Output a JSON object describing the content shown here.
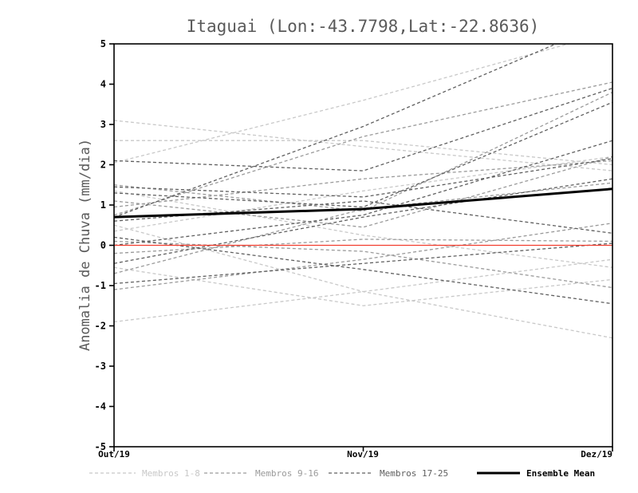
{
  "chart_data": {
    "type": "line",
    "title": "Itaguai (Lon:-43.7798,Lat:-22.8636)",
    "ylabel": "Anomalia de Chuva (mm/dia)",
    "xlabel": "",
    "x_tick_labels": [
      "Out/19",
      "Nov/19",
      "Dez/19"
    ],
    "y_ticks": [
      -5,
      -4,
      -3,
      -2,
      -1,
      0,
      1,
      2,
      3,
      4,
      5
    ],
    "ylim": [
      -5,
      5
    ],
    "grid": false,
    "legend_position": "bottom",
    "zero_line": {
      "value": 0,
      "color": "#f23d2e"
    },
    "groups": [
      {
        "name": "Membros 1-8",
        "color": "#c8c8c8",
        "dash": "4 3",
        "width": 1.3
      },
      {
        "name": "Membros 9-16",
        "color": "#9a9a9a",
        "dash": "4 3",
        "width": 1.3
      },
      {
        "name": "Membros 17-25",
        "color": "#5f5f5f",
        "dash": "4 3",
        "width": 1.3
      },
      {
        "name": "Ensemble Mean",
        "color": "#000000",
        "dash": "",
        "width": 3
      }
    ],
    "series": [
      {
        "name": "Membro 1",
        "group": 0,
        "values": [
          3.1,
          2.45,
          1.85
        ]
      },
      {
        "name": "Membro 2",
        "group": 0,
        "values": [
          2.6,
          2.6,
          2.0
        ]
      },
      {
        "name": "Membro 3",
        "group": 0,
        "values": [
          2.05,
          3.6,
          5.3
        ]
      },
      {
        "name": "Membro 4",
        "group": 0,
        "values": [
          1.35,
          0.25,
          -0.55
        ]
      },
      {
        "name": "Membro 5",
        "group": 0,
        "values": [
          0.5,
          -1.15,
          -2.3
        ]
      },
      {
        "name": "Membro 6",
        "group": 0,
        "values": [
          -1.9,
          -1.15,
          -0.35
        ]
      },
      {
        "name": "Membro 7",
        "group": 0,
        "values": [
          0.35,
          1.35,
          2.2
        ]
      },
      {
        "name": "Membro 8",
        "group": 0,
        "values": [
          -0.55,
          -1.5,
          -0.85
        ]
      },
      {
        "name": "Membro 9",
        "group": 1,
        "values": [
          0.75,
          2.7,
          4.05
        ]
      },
      {
        "name": "Membro 10",
        "group": 1,
        "values": [
          1.5,
          0.85,
          3.8
        ]
      },
      {
        "name": "Membro 11",
        "group": 1,
        "values": [
          -0.2,
          0.15,
          0.1
        ]
      },
      {
        "name": "Membro 12",
        "group": 1,
        "values": [
          0.1,
          -0.15,
          -1.05
        ]
      },
      {
        "name": "Membro 13",
        "group": 1,
        "values": [
          -0.7,
          0.9,
          1.55
        ]
      },
      {
        "name": "Membro 14",
        "group": 1,
        "values": [
          1.1,
          0.45,
          2.2
        ]
      },
      {
        "name": "Membro 15",
        "group": 1,
        "values": [
          -1.1,
          -0.35,
          0.55
        ]
      },
      {
        "name": "Membro 16",
        "group": 1,
        "values": [
          0.95,
          1.65,
          2.1
        ]
      },
      {
        "name": "Membro 17",
        "group": 2,
        "values": [
          0.7,
          2.95,
          5.6
        ]
      },
      {
        "name": "Membro 18",
        "group": 2,
        "values": [
          2.1,
          1.85,
          3.9
        ]
      },
      {
        "name": "Membro 19",
        "group": 2,
        "values": [
          1.3,
          0.95,
          3.55
        ]
      },
      {
        "name": "Membro 20",
        "group": 2,
        "values": [
          0.0,
          0.75,
          2.6
        ]
      },
      {
        "name": "Membro 21",
        "group": 2,
        "values": [
          -0.45,
          0.7,
          1.65
        ]
      },
      {
        "name": "Membro 22",
        "group": 2,
        "values": [
          0.6,
          1.1,
          0.3
        ]
      },
      {
        "name": "Membro 23",
        "group": 2,
        "values": [
          -0.95,
          -0.45,
          0.05
        ]
      },
      {
        "name": "Membro 24",
        "group": 2,
        "values": [
          1.45,
          1.2,
          2.15
        ]
      },
      {
        "name": "Membro 25",
        "group": 2,
        "values": [
          0.2,
          -0.6,
          -1.45
        ]
      },
      {
        "name": "Ensemble Mean",
        "group": 3,
        "values": [
          0.7,
          0.9,
          1.4
        ]
      }
    ]
  }
}
